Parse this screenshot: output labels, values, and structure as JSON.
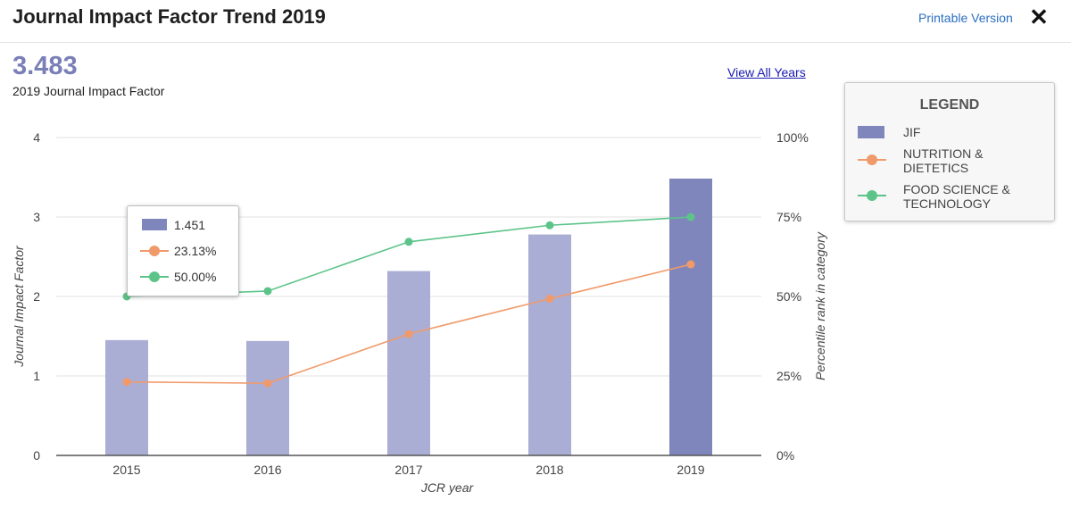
{
  "header": {
    "title": "Journal Impact Factor Trend 2019",
    "printable_label": "Printable Version",
    "close_label": "✕"
  },
  "summary": {
    "value": "3.483",
    "label": "2019 Journal Impact Factor",
    "view_all_label": "View All Years"
  },
  "legend": {
    "title": "LEGEND",
    "items": [
      {
        "label": "JIF",
        "color": "#7f86bc",
        "kind": "bar"
      },
      {
        "label": "NUTRITION & DIETETICS",
        "color": "#f09a6b",
        "kind": "line"
      },
      {
        "label": "FOOD SCIENCE & TECHNOLOGY",
        "color": "#5dc489",
        "kind": "line"
      }
    ]
  },
  "tooltip": {
    "jif": "1.451",
    "nutrition": "23.13%",
    "food": "50.00%"
  },
  "chart_data": {
    "type": "bar",
    "title": "Journal Impact Factor Trend 2019",
    "categories": [
      "2015",
      "2016",
      "2017",
      "2018",
      "2019"
    ],
    "xlabel": "JCR year",
    "ylabel": "Journal Impact Factor",
    "y2label": "Percentile rank in category",
    "ylim": [
      0,
      4
    ],
    "yticks": [
      "0",
      "1",
      "2",
      "3",
      "4"
    ],
    "y2lim": [
      0,
      100
    ],
    "y2ticks": [
      "0%",
      "25%",
      "50%",
      "75%",
      "100%"
    ],
    "grid": true,
    "bar_color": "#abaed4",
    "highlight_color": "#7f86bc",
    "highlight_index": 4,
    "series": [
      {
        "name": "JIF",
        "type": "bar",
        "axis": "left",
        "values": [
          1.451,
          1.44,
          2.32,
          2.78,
          3.483
        ]
      },
      {
        "name": "NUTRITION & DIETETICS",
        "type": "line",
        "axis": "right",
        "color": "#f09a6b",
        "values": [
          23.13,
          22.7,
          38.2,
          49.3,
          60.1
        ]
      },
      {
        "name": "FOOD SCIENCE & TECHNOLOGY",
        "type": "line",
        "axis": "right",
        "color": "#5dc489",
        "values": [
          50.0,
          51.7,
          67.2,
          72.4,
          75.0
        ]
      }
    ]
  }
}
